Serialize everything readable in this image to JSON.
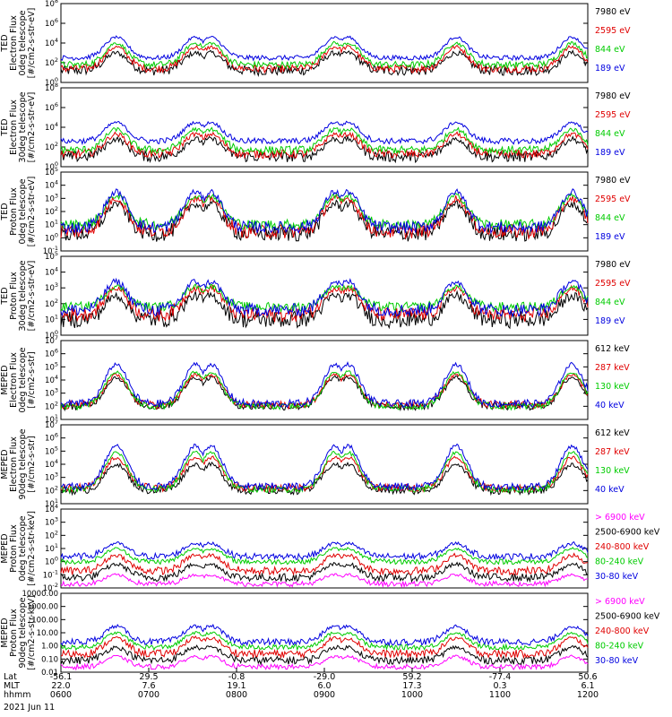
{
  "chart_data": [
    {
      "type": "line",
      "ylabel": [
        "TED",
        "Electron Flux",
        "0deg telescope",
        "[#/cm2-s-str-eV]"
      ],
      "yticks": [
        "10^0",
        "10^2",
        "10^4",
        "10^6",
        "10^8"
      ],
      "ylim_log10": [
        0,
        8
      ],
      "series": [
        {
          "name": "7980 eV",
          "color": "#000000",
          "base_log": 1.2,
          "peak_log": 3.0,
          "noise": 0.5
        },
        {
          "name": "2595 eV",
          "color": "#e00000",
          "base_log": 1.4,
          "peak_log": 3.6,
          "noise": 0.4
        },
        {
          "name": "844 eV",
          "color": "#00cc00",
          "base_log": 1.8,
          "peak_log": 4.0,
          "noise": 0.35
        },
        {
          "name": "189 eV",
          "color": "#0000e0",
          "base_log": 2.5,
          "peak_log": 4.6,
          "noise": 0.25
        }
      ]
    },
    {
      "type": "line",
      "ylabel": [
        "TED",
        "Electron Flux",
        "30deg telescope",
        "[#/cm2-s-str-eV]"
      ],
      "yticks": [
        "10^0",
        "10^2",
        "10^4",
        "10^6",
        "10^8"
      ],
      "ylim_log10": [
        0,
        8
      ],
      "series": [
        {
          "name": "7980 eV",
          "color": "#000000",
          "base_log": 1.0,
          "peak_log": 2.8,
          "noise": 0.55
        },
        {
          "name": "2595 eV",
          "color": "#e00000",
          "base_log": 1.3,
          "peak_log": 3.3,
          "noise": 0.45
        },
        {
          "name": "844 eV",
          "color": "#00cc00",
          "base_log": 1.7,
          "peak_log": 3.8,
          "noise": 0.4
        },
        {
          "name": "189 eV",
          "color": "#0000e0",
          "base_log": 2.6,
          "peak_log": 4.5,
          "noise": 0.3
        }
      ]
    },
    {
      "type": "line",
      "ylabel": [
        "TED",
        "Proton Flux",
        "0deg telescope",
        "[#/cm2-s-str-eV]"
      ],
      "yticks": [
        "10^-1",
        "10^0",
        "10^1",
        "10^2",
        "10^3",
        "10^4",
        "10^5"
      ],
      "ylim_log10": [
        -1,
        5
      ],
      "series": [
        {
          "name": "7980 eV",
          "color": "#000000",
          "base_log": 0.3,
          "peak_log": 2.6,
          "noise": 0.6
        },
        {
          "name": "2595 eV",
          "color": "#e00000",
          "base_log": 0.5,
          "peak_log": 3.0,
          "noise": 0.55
        },
        {
          "name": "844 eV",
          "color": "#00cc00",
          "base_log": 1.0,
          "peak_log": 3.2,
          "noise": 0.4
        },
        {
          "name": "189 eV",
          "color": "#0000e0",
          "base_log": 0.8,
          "peak_log": 3.5,
          "noise": 0.45
        }
      ]
    },
    {
      "type": "line",
      "ylabel": [
        "TED",
        "Proton Flux",
        "30deg telescope",
        "[#/cm2-s-str-eV]"
      ],
      "yticks": [
        "10^0",
        "10^1",
        "10^2",
        "10^3",
        "10^4",
        "10^5"
      ],
      "ylim_log10": [
        0,
        5
      ],
      "series": [
        {
          "name": "7980 eV",
          "color": "#000000",
          "base_log": 1.0,
          "peak_log": 2.5,
          "noise": 0.55
        },
        {
          "name": "2595 eV",
          "color": "#e00000",
          "base_log": 1.3,
          "peak_log": 3.0,
          "noise": 0.45
        },
        {
          "name": "844 eV",
          "color": "#00cc00",
          "base_log": 1.8,
          "peak_log": 3.1,
          "noise": 0.3
        },
        {
          "name": "189 eV",
          "color": "#0000e0",
          "base_log": 1.6,
          "peak_log": 3.4,
          "noise": 0.4
        }
      ]
    },
    {
      "type": "line",
      "ylabel": [
        "MEPED",
        "Electron Flux",
        "0deg telescope",
        "[#/cm2-s-str]"
      ],
      "yticks": [
        "10^1",
        "10^2",
        "10^3",
        "10^4",
        "10^5",
        "10^6",
        "10^7"
      ],
      "ylim_log10": [
        1,
        7
      ],
      "series": [
        {
          "name": "612 keV",
          "color": "#000000",
          "base_log": 2.0,
          "peak_log": 4.2,
          "noise": 0.3
        },
        {
          "name": "287 keV",
          "color": "#e00000",
          "base_log": 2.1,
          "peak_log": 4.4,
          "noise": 0.3
        },
        {
          "name": "130 keV",
          "color": "#00cc00",
          "base_log": 2.0,
          "peak_log": 4.6,
          "noise": 0.25
        },
        {
          "name": "40 keV",
          "color": "#0000e0",
          "base_log": 2.2,
          "peak_log": 5.2,
          "noise": 0.3
        }
      ]
    },
    {
      "type": "line",
      "ylabel": [
        "MEPED",
        "Electron Flux",
        "90deg telescope",
        "[#/cm2-s-str]"
      ],
      "yticks": [
        "10^1",
        "10^2",
        "10^3",
        "10^4",
        "10^5",
        "10^6",
        "10^7"
      ],
      "ylim_log10": [
        1,
        7
      ],
      "series": [
        {
          "name": "612 keV",
          "color": "#000000",
          "base_log": 2.0,
          "peak_log": 4.0,
          "noise": 0.3
        },
        {
          "name": "287 keV",
          "color": "#e00000",
          "base_log": 2.2,
          "peak_log": 4.5,
          "noise": 0.3
        },
        {
          "name": "130 keV",
          "color": "#00cc00",
          "base_log": 2.1,
          "peak_log": 4.9,
          "noise": 0.25
        },
        {
          "name": "40 keV",
          "color": "#0000e0",
          "base_log": 2.3,
          "peak_log": 5.4,
          "noise": 0.3
        }
      ]
    },
    {
      "type": "line",
      "ylabel": [
        "MEPED",
        "Proton Flux",
        "0deg telescope",
        "[#/cm2-s-str-keV]"
      ],
      "yticks": [
        "10^-2",
        "10^-1",
        "10^0",
        "10^1",
        "10^2",
        "10^3",
        "10^4"
      ],
      "ylim_log10": [
        -2,
        4
      ],
      "series": [
        {
          "name": "> 6900 keV",
          "color": "#ff00ff",
          "base_log": -1.7,
          "peak_log": -1.0,
          "noise": 0.2
        },
        {
          "name": "2500-6900 keV",
          "color": "#000000",
          "base_log": -1.2,
          "peak_log": -0.2,
          "noise": 0.3
        },
        {
          "name": "240-800 keV",
          "color": "#e00000",
          "base_log": -0.7,
          "peak_log": 0.5,
          "noise": 0.3
        },
        {
          "name": "80-240 keV",
          "color": "#00cc00",
          "base_log": 0.0,
          "peak_log": 1.0,
          "noise": 0.2
        },
        {
          "name": "30-80 keV",
          "color": "#0000e0",
          "base_log": 0.4,
          "peak_log": 1.4,
          "noise": 0.25
        }
      ]
    },
    {
      "type": "line",
      "ylabel": [
        "MEPED",
        "Proton Flux",
        "90deg telescope",
        "[#/cm2-s-str-keV]"
      ],
      "yticks": [
        "0.01",
        "0.10",
        "1.00",
        "10.00",
        "100.00",
        "1000.00",
        "10000.00"
      ],
      "ylim_log10": [
        -2,
        4
      ],
      "series": [
        {
          "name": "> 6900 keV",
          "color": "#ff00ff",
          "base_log": -1.6,
          "peak_log": -0.8,
          "noise": 0.2
        },
        {
          "name": "2500-6900 keV",
          "color": "#000000",
          "base_log": -1.1,
          "peak_log": -0.1,
          "noise": 0.3
        },
        {
          "name": "240-800 keV",
          "color": "#e00000",
          "base_log": -0.6,
          "peak_log": 0.6,
          "noise": 0.3
        },
        {
          "name": "80-240 keV",
          "color": "#00cc00",
          "base_log": -0.1,
          "peak_log": 1.0,
          "noise": 0.2
        },
        {
          "name": "30-80 keV",
          "color": "#0000e0",
          "base_log": 0.3,
          "peak_log": 1.5,
          "noise": 0.25
        }
      ]
    }
  ],
  "x_axis": {
    "rows": [
      {
        "label": "Lat",
        "values": [
          "-56.1",
          "29.5",
          "-0.8",
          "-29.0",
          "59.2",
          "-77.4",
          "50.6"
        ]
      },
      {
        "label": "MLT",
        "values": [
          "22.0",
          "7.6",
          "19.1",
          "6.0",
          "17.3",
          "0.3",
          "6.1"
        ]
      },
      {
        "label": "hhmm",
        "values": [
          "0600",
          "0700",
          "0800",
          "0900",
          "1000",
          "1100",
          "1200"
        ]
      }
    ],
    "date": "2021 Jun 11"
  }
}
